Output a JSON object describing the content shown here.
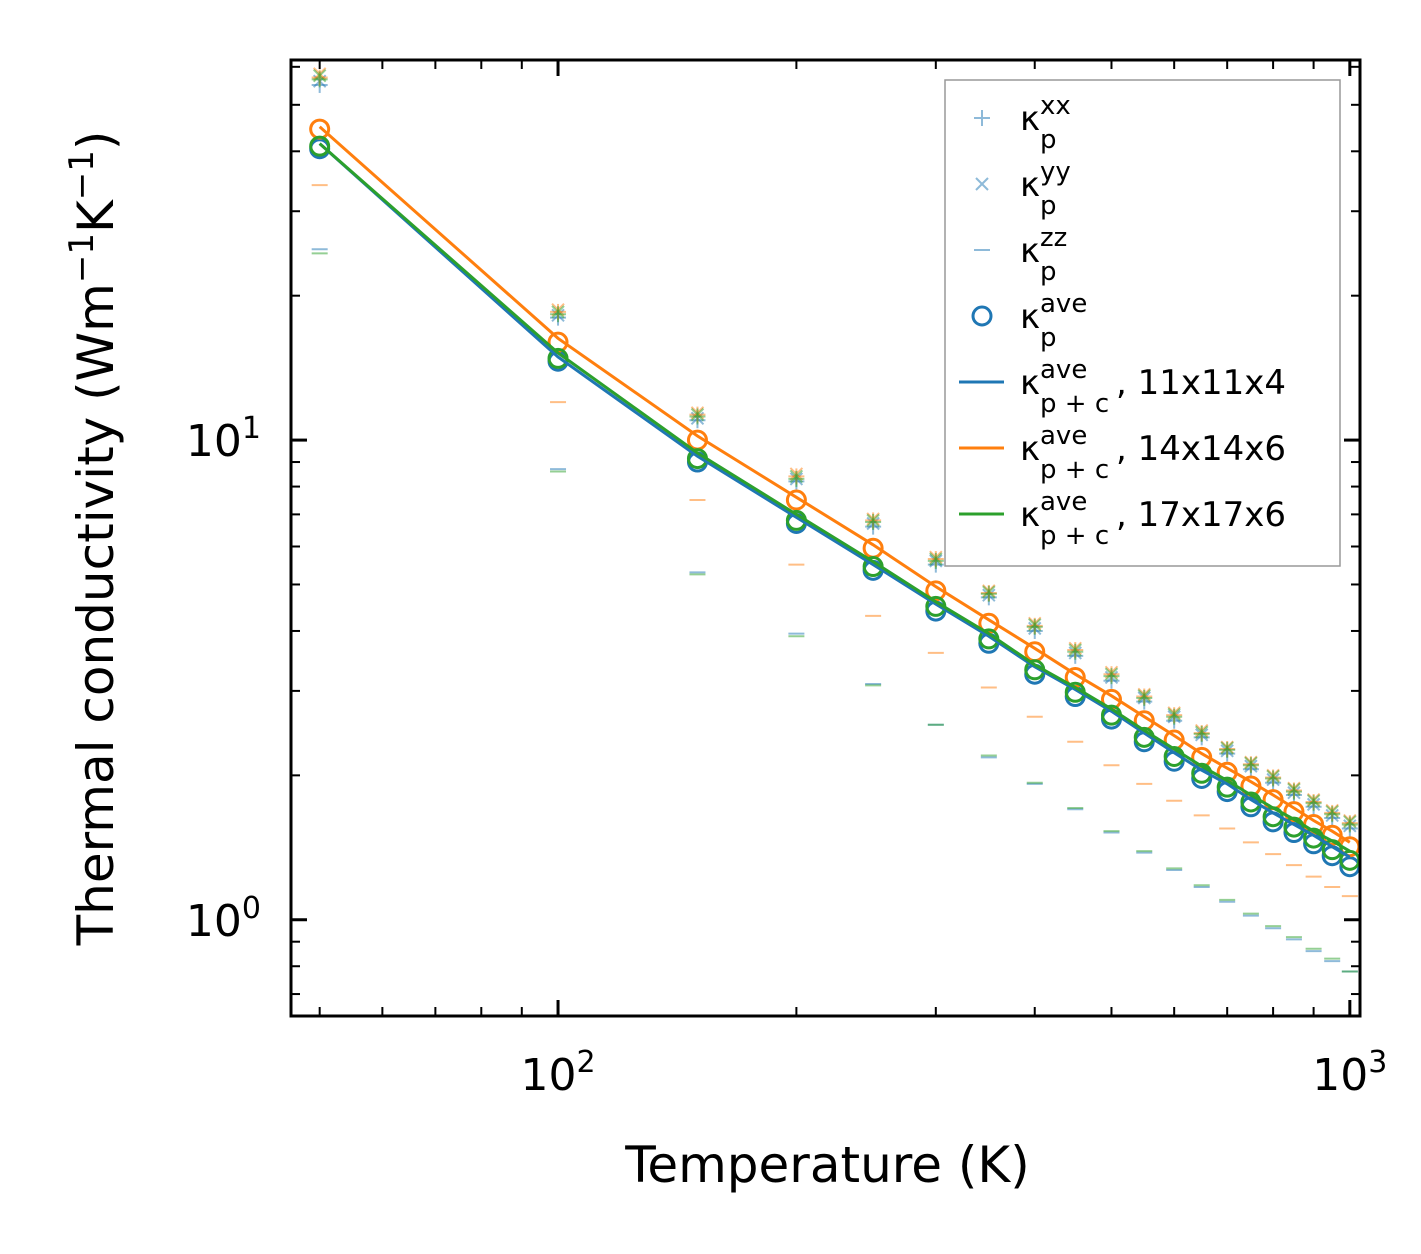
{
  "chart_data": {
    "type": "line",
    "xscale": "log",
    "yscale": "log",
    "xlabel": "Temperature (K)",
    "ylabel_parts": [
      "Thermal conductivity (Wm",
      "−1",
      "K",
      "−1",
      ")"
    ],
    "xlim": [
      46,
      1030
    ],
    "ylim": [
      0.63,
      62
    ],
    "x_ticks": [
      {
        "base": "10",
        "exp": "2",
        "value": 100
      },
      {
        "base": "10",
        "exp": "3",
        "value": 1000
      }
    ],
    "y_ticks": [
      {
        "base": "10",
        "exp": "0",
        "value": 1
      },
      {
        "base": "10",
        "exp": "1",
        "value": 10
      }
    ],
    "temperatures": [
      50,
      100,
      150,
      200,
      250,
      300,
      350,
      400,
      450,
      500,
      550,
      600,
      650,
      700,
      750,
      800,
      850,
      900,
      950,
      1000
    ],
    "series": [
      {
        "name": "11x11x4",
        "color": "#1f77b4",
        "kxx": [
          55,
          18.0,
          11.0,
          8.2,
          6.6,
          5.5,
          4.7,
          4.0,
          3.55,
          3.15,
          2.85,
          2.6,
          2.4,
          2.22,
          2.06,
          1.93,
          1.82,
          1.72,
          1.63,
          1.55
        ],
        "kyy": [
          56,
          18.2,
          11.1,
          8.3,
          6.7,
          5.6,
          4.75,
          4.05,
          3.6,
          3.2,
          2.9,
          2.65,
          2.43,
          2.25,
          2.09,
          1.96,
          1.84,
          1.74,
          1.65,
          1.57
        ],
        "kzz": [
          25,
          8.7,
          5.3,
          3.95,
          3.1,
          2.55,
          2.18,
          1.92,
          1.7,
          1.52,
          1.38,
          1.27,
          1.17,
          1.09,
          1.02,
          0.96,
          0.91,
          0.86,
          0.82,
          0.78
        ],
        "kave": [
          40.5,
          14.6,
          9.0,
          6.7,
          5.35,
          4.4,
          3.77,
          3.25,
          2.92,
          2.62,
          2.35,
          2.14,
          1.97,
          1.85,
          1.72,
          1.6,
          1.52,
          1.44,
          1.36,
          1.29
        ],
        "kave_pc": [
          41.5,
          14.9,
          9.25,
          6.9,
          5.5,
          4.55,
          3.9,
          3.37,
          3.02,
          2.72,
          2.45,
          2.23,
          2.05,
          1.92,
          1.78,
          1.67,
          1.58,
          1.5,
          1.42,
          1.35
        ]
      },
      {
        "name": "14x14x6",
        "color": "#ff7f0e",
        "kxx": [
          57,
          18.5,
          11.3,
          8.4,
          6.8,
          5.65,
          4.8,
          4.1,
          3.65,
          3.25,
          2.92,
          2.67,
          2.45,
          2.27,
          2.11,
          1.98,
          1.86,
          1.76,
          1.67,
          1.59
        ],
        "kyy": [
          58,
          18.7,
          11.4,
          8.5,
          6.85,
          5.7,
          4.85,
          4.15,
          3.68,
          3.28,
          2.95,
          2.7,
          2.48,
          2.29,
          2.13,
          2.0,
          1.88,
          1.78,
          1.69,
          1.61
        ],
        "kzz": [
          34,
          12.0,
          7.5,
          5.5,
          4.3,
          3.6,
          3.05,
          2.65,
          2.35,
          2.1,
          1.92,
          1.77,
          1.65,
          1.55,
          1.45,
          1.37,
          1.3,
          1.23,
          1.17,
          1.12
        ],
        "kave": [
          44.5,
          16.0,
          10.0,
          7.5,
          5.95,
          4.85,
          4.15,
          3.62,
          3.2,
          2.88,
          2.6,
          2.37,
          2.18,
          2.03,
          1.9,
          1.78,
          1.68,
          1.58,
          1.5,
          1.42
        ],
        "kave_pc": [
          45.0,
          16.3,
          10.2,
          7.6,
          6.05,
          4.95,
          4.22,
          3.68,
          3.25,
          2.93,
          2.65,
          2.42,
          2.22,
          2.07,
          1.94,
          1.82,
          1.71,
          1.61,
          1.53,
          1.45
        ]
      },
      {
        "name": "17x17x6",
        "color": "#2ca02c",
        "kxx": [
          56.5,
          18.3,
          11.2,
          8.3,
          6.75,
          5.6,
          4.78,
          4.08,
          3.62,
          3.22,
          2.9,
          2.65,
          2.44,
          2.26,
          2.1,
          1.97,
          1.85,
          1.75,
          1.66,
          1.58
        ],
        "kyy": [
          57.5,
          18.5,
          11.3,
          8.4,
          6.8,
          5.65,
          4.82,
          4.12,
          3.65,
          3.25,
          2.93,
          2.68,
          2.46,
          2.28,
          2.12,
          1.99,
          1.87,
          1.77,
          1.68,
          1.6
        ],
        "kzz": [
          24.5,
          8.6,
          5.25,
          3.9,
          3.08,
          2.55,
          2.2,
          1.93,
          1.71,
          1.53,
          1.39,
          1.28,
          1.18,
          1.1,
          1.03,
          0.97,
          0.92,
          0.87,
          0.83,
          0.78
        ],
        "kave": [
          41.0,
          14.8,
          9.15,
          6.8,
          5.45,
          4.5,
          3.85,
          3.32,
          2.98,
          2.67,
          2.4,
          2.19,
          2.02,
          1.89,
          1.76,
          1.64,
          1.56,
          1.48,
          1.4,
          1.33
        ],
        "kave_pc": [
          41.5,
          15.2,
          9.4,
          7.0,
          5.58,
          4.6,
          3.95,
          3.4,
          3.05,
          2.75,
          2.48,
          2.27,
          2.09,
          1.95,
          1.82,
          1.71,
          1.62,
          1.53,
          1.46,
          1.39
        ]
      }
    ],
    "legend": {
      "placement": "top-right",
      "entries": [
        {
          "marker": "plus",
          "color": "#1f77b4",
          "kappa": "κ",
          "sub": "p",
          "sup": "xx",
          "suffix": ""
        },
        {
          "marker": "cross",
          "color": "#1f77b4",
          "kappa": "κ",
          "sub": "p",
          "sup": "yy",
          "suffix": ""
        },
        {
          "marker": "dash",
          "color": "#1f77b4",
          "kappa": "κ",
          "sub": "p",
          "sup": "zz",
          "suffix": ""
        },
        {
          "marker": "circle",
          "color": "#1f77b4",
          "kappa": "κ",
          "sub": "p",
          "sup": "ave",
          "suffix": ""
        },
        {
          "marker": "line",
          "color": "#1f77b4",
          "kappa": "κ",
          "sub": "p + c",
          "sup": "ave",
          "suffix": ", 11x11x4"
        },
        {
          "marker": "line",
          "color": "#ff7f0e",
          "kappa": "κ",
          "sub": "p + c",
          "sup": "ave",
          "suffix": ", 14x14x6"
        },
        {
          "marker": "line",
          "color": "#2ca02c",
          "kappa": "κ",
          "sub": "p + c",
          "sup": "ave",
          "suffix": ", 17x17x6"
        }
      ]
    }
  }
}
